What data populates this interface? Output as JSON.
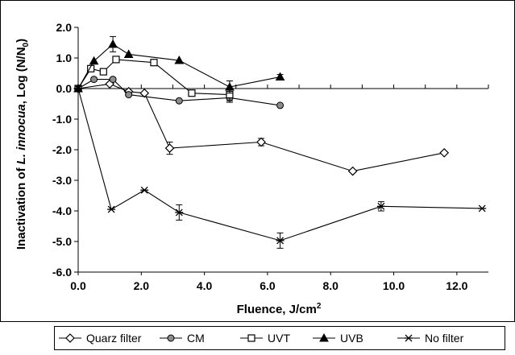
{
  "chart_data": {
    "type": "line",
    "xlabel_main": "Fluence, J/cm",
    "xlabel_sup": "2",
    "ylabel_parts": [
      "Inactivation of ",
      "L. innocua",
      ", Log (N/N",
      "0",
      ")"
    ],
    "xlim": [
      0,
      13
    ],
    "ylim": [
      -6,
      2
    ],
    "xticks": [
      0,
      2,
      4,
      6,
      8,
      10,
      12
    ],
    "xtick_labels": [
      "0.0",
      "2.0",
      "4.0",
      "6.0",
      "8.0",
      "10.0",
      "12.0"
    ],
    "yticks": [
      2,
      1,
      0,
      -1,
      -2,
      -3,
      -4,
      -5,
      -6
    ],
    "ytick_labels": [
      "2.0",
      "1.0",
      "0.0",
      "-1.0",
      "-2.0",
      "-3.0",
      "-4.0",
      "-5.0",
      "-6.0"
    ],
    "grid": false,
    "legend_position": "bottom",
    "series": [
      {
        "name": "Quarz filter",
        "marker": "diamond-open",
        "color": "#000000",
        "x": [
          0,
          1.0,
          1.6,
          2.1,
          2.9,
          5.8,
          8.7,
          11.6
        ],
        "y": [
          0,
          0.15,
          -0.1,
          -0.15,
          -1.95,
          -1.75,
          -2.7,
          -2.1
        ],
        "err": [
          0,
          0,
          0,
          0,
          0.2,
          0.12,
          0,
          0
        ]
      },
      {
        "name": "CM",
        "marker": "circle-filled-gray",
        "color": "#808080",
        "x": [
          0,
          0.5,
          1.1,
          1.6,
          3.2,
          4.8,
          6.4
        ],
        "y": [
          0,
          0.3,
          0.3,
          -0.2,
          -0.4,
          -0.3,
          -0.55
        ],
        "err": [
          0,
          0,
          0,
          0,
          0,
          0.15,
          0
        ]
      },
      {
        "name": "UVT",
        "marker": "square-open",
        "color": "#000000",
        "x": [
          0,
          0.4,
          0.8,
          1.2,
          2.4,
          3.6,
          4.8
        ],
        "y": [
          0,
          0.65,
          0.55,
          0.95,
          0.85,
          -0.15,
          -0.2
        ],
        "err": [
          0,
          0,
          0,
          0,
          0,
          0,
          0.2
        ]
      },
      {
        "name": "UVB",
        "marker": "triangle-filled",
        "color": "#000000",
        "x": [
          0,
          0.5,
          1.1,
          1.6,
          3.2,
          4.8,
          6.4
        ],
        "y": [
          0,
          0.9,
          1.45,
          1.12,
          0.92,
          0.05,
          0.38
        ],
        "err": [
          0,
          0,
          0.25,
          0,
          0,
          0.2,
          0.08
        ]
      },
      {
        "name": "No filter",
        "marker": "star",
        "color": "#000000",
        "x": [
          0,
          1.05,
          2.1,
          3.2,
          6.4,
          9.6,
          12.8
        ],
        "y": [
          0,
          -3.95,
          -3.32,
          -4.05,
          -4.97,
          -3.85,
          -3.92
        ],
        "err": [
          0,
          0,
          0,
          0.25,
          0.25,
          0.15,
          0
        ]
      }
    ]
  }
}
